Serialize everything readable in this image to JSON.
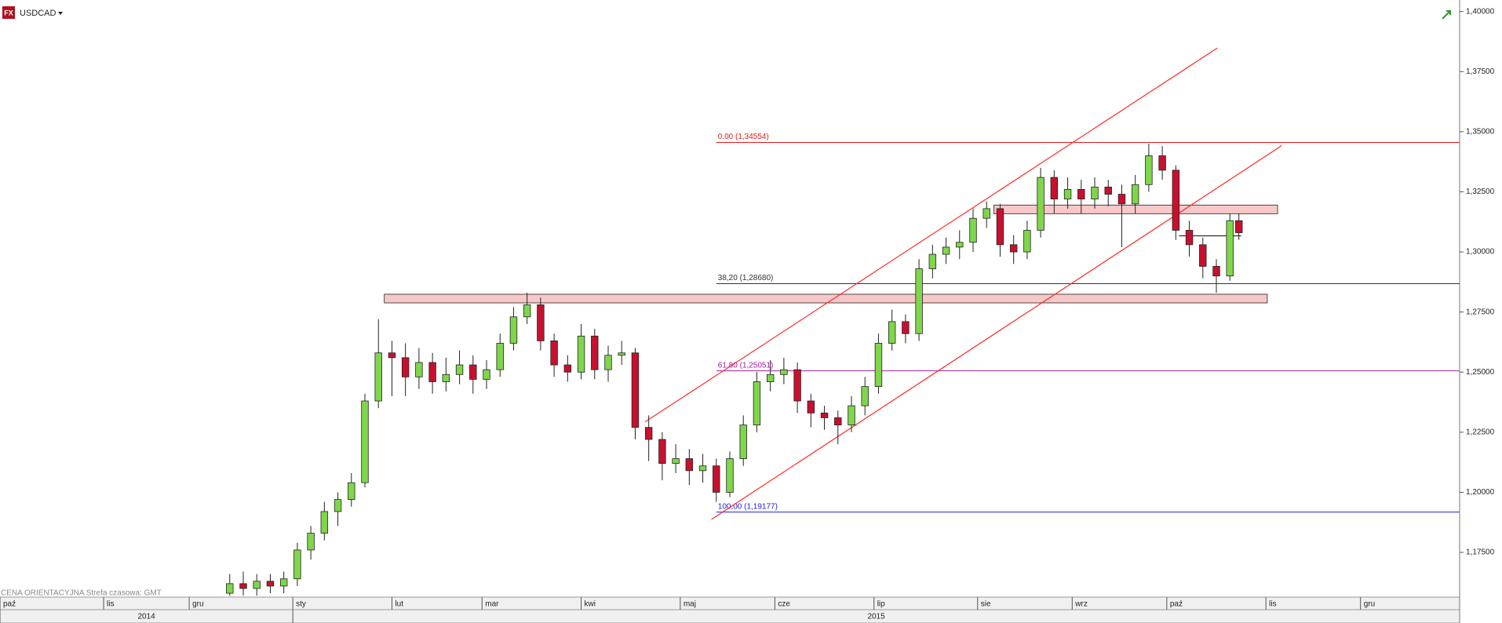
{
  "chart_data": {
    "type": "candlestick",
    "title": "USDCAD",
    "logo": "FX",
    "footnote": "CENA ORIENTACYJNA    Strefa czasowa: GMT",
    "x": [
      51,
      54,
      57,
      60,
      63,
      66,
      69,
      72,
      75,
      78,
      81,
      84,
      87,
      90,
      93,
      96,
      99,
      102,
      105,
      108,
      111,
      114,
      117,
      120,
      123,
      126,
      129,
      132,
      135,
      138,
      141,
      144,
      147,
      150,
      153,
      156,
      159,
      162,
      165,
      168,
      171,
      174,
      177,
      180,
      183,
      186,
      189,
      192,
      195,
      198,
      201,
      204,
      207,
      210,
      213,
      216,
      219,
      222,
      225,
      228,
      231,
      234,
      237,
      240,
      243,
      246,
      249,
      252,
      255,
      258,
      261,
      264,
      267,
      270,
      273,
      275
    ],
    "open": [
      1.158,
      1.162,
      1.16,
      1.163,
      1.161,
      1.164,
      1.176,
      1.183,
      1.192,
      1.197,
      1.204,
      1.238,
      1.258,
      1.256,
      1.248,
      1.254,
      1.246,
      1.249,
      1.253,
      1.247,
      1.251,
      1.262,
      1.273,
      1.278,
      1.263,
      1.253,
      1.25,
      1.265,
      1.251,
      1.257,
      1.258,
      1.227,
      1.222,
      1.212,
      1.214,
      1.209,
      1.211,
      1.2,
      1.214,
      1.228,
      1.246,
      1.249,
      1.251,
      1.238,
      1.233,
      1.231,
      1.228,
      1.236,
      1.244,
      1.262,
      1.271,
      1.266,
      1.293,
      1.299,
      1.302,
      1.304,
      1.314,
      1.318,
      1.303,
      1.3,
      1.309,
      1.331,
      1.322,
      1.326,
      1.322,
      1.327,
      1.324,
      1.32,
      1.328,
      1.34,
      1.334,
      1.309,
      1.303,
      1.294,
      1.29,
      1.313
    ],
    "high": [
      1.166,
      1.167,
      1.166,
      1.166,
      1.167,
      1.179,
      1.186,
      1.196,
      1.2,
      1.208,
      1.241,
      1.272,
      1.263,
      1.262,
      1.26,
      1.258,
      1.256,
      1.259,
      1.257,
      1.255,
      1.266,
      1.277,
      1.283,
      1.281,
      1.266,
      1.257,
      1.27,
      1.268,
      1.261,
      1.263,
      1.26,
      1.232,
      1.225,
      1.22,
      1.218,
      1.216,
      1.214,
      1.217,
      1.232,
      1.25,
      1.255,
      1.256,
      1.254,
      1.241,
      1.236,
      1.234,
      1.24,
      1.248,
      1.266,
      1.276,
      1.274,
      1.297,
      1.303,
      1.306,
      1.309,
      1.318,
      1.321,
      1.32,
      1.307,
      1.313,
      1.335,
      1.334,
      1.331,
      1.33,
      1.331,
      1.33,
      1.328,
      1.332,
      1.345,
      1.344,
      1.336,
      1.313,
      1.306,
      1.297,
      1.316,
      1.316
    ],
    "low": [
      1.157,
      1.157,
      1.157,
      1.158,
      1.158,
      1.161,
      1.172,
      1.18,
      1.186,
      1.194,
      1.202,
      1.235,
      1.24,
      1.24,
      1.243,
      1.241,
      1.242,
      1.245,
      1.241,
      1.243,
      1.248,
      1.259,
      1.27,
      1.259,
      1.248,
      1.246,
      1.247,
      1.247,
      1.246,
      1.253,
      1.222,
      1.213,
      1.205,
      1.208,
      1.203,
      1.204,
      1.196,
      1.198,
      1.211,
      1.225,
      1.242,
      1.245,
      1.233,
      1.227,
      1.226,
      1.22,
      1.225,
      1.232,
      1.241,
      1.259,
      1.262,
      1.263,
      1.289,
      1.295,
      1.297,
      1.3,
      1.31,
      1.298,
      1.295,
      1.297,
      1.306,
      1.316,
      1.318,
      1.316,
      1.318,
      1.319,
      1.302,
      1.316,
      1.325,
      1.33,
      1.305,
      1.298,
      1.289,
      1.283,
      1.288,
      1.305
    ],
    "close": [
      1.162,
      1.16,
      1.163,
      1.161,
      1.164,
      1.176,
      1.183,
      1.192,
      1.197,
      1.204,
      1.238,
      1.258,
      1.256,
      1.248,
      1.254,
      1.246,
      1.249,
      1.253,
      1.247,
      1.251,
      1.262,
      1.273,
      1.278,
      1.263,
      1.253,
      1.25,
      1.265,
      1.251,
      1.257,
      1.258,
      1.227,
      1.222,
      1.212,
      1.214,
      1.209,
      1.211,
      1.2,
      1.214,
      1.228,
      1.246,
      1.249,
      1.251,
      1.238,
      1.233,
      1.231,
      1.228,
      1.236,
      1.244,
      1.262,
      1.271,
      1.266,
      1.293,
      1.299,
      1.302,
      1.304,
      1.314,
      1.318,
      1.303,
      1.3,
      1.309,
      1.331,
      1.322,
      1.326,
      1.322,
      1.327,
      1.324,
      1.32,
      1.328,
      1.34,
      1.334,
      1.309,
      1.303,
      1.294,
      1.29,
      1.313,
      1.308
    ],
    "up_color": "#7fd64a",
    "down_color": "#c8102e",
    "xlim": [
      0,
      324
    ],
    "ylim": [
      1.1564,
      1.4048
    ],
    "xticks": [
      {
        "value": 0,
        "label": "paź"
      },
      {
        "value": 23,
        "label": "lis"
      },
      {
        "value": 42,
        "label": "gru"
      },
      {
        "value": 65,
        "label": "sty"
      },
      {
        "value": 87,
        "label": "lut"
      },
      {
        "value": 107,
        "label": "mar"
      },
      {
        "value": 129,
        "label": "kwi"
      },
      {
        "value": 151,
        "label": "maj"
      },
      {
        "value": 172,
        "label": "cze"
      },
      {
        "value": 194,
        "label": "lip"
      },
      {
        "value": 217,
        "label": "sie"
      },
      {
        "value": 238,
        "label": "wrz"
      },
      {
        "value": 259,
        "label": "paź"
      },
      {
        "value": 281,
        "label": "lis"
      },
      {
        "value": 302,
        "label": "gru"
      }
    ],
    "year_ticks": [
      {
        "value": 0,
        "label": "2014"
      },
      {
        "value": 65,
        "label": "2015"
      }
    ],
    "yticks": [
      {
        "value": 1.175,
        "label": "1,17500"
      },
      {
        "value": 1.2,
        "label": "1,20000"
      },
      {
        "value": 1.225,
        "label": "1,22500"
      },
      {
        "value": 1.25,
        "label": "1,25000"
      },
      {
        "value": 1.275,
        "label": "1,27500"
      },
      {
        "value": 1.3,
        "label": "1,30000"
      },
      {
        "value": 1.325,
        "label": "1,32500"
      },
      {
        "value": 1.35,
        "label": "1,35000"
      },
      {
        "value": 1.375,
        "label": "1,37500"
      },
      {
        "value": 1.4,
        "label": "1,40000"
      }
    ],
    "fib_levels": [
      {
        "label": "0,00 (1,34554)",
        "value": 1.34554,
        "x": 159,
        "color": "#e31a1c"
      },
      {
        "label": "38,20 (1,28680)",
        "value": 1.2868,
        "x": 159,
        "color": "#333333"
      },
      {
        "label": "61,80 (1,25051)",
        "value": 1.25051,
        "x": 159,
        "color": "#a020a0"
      },
      {
        "label": "100,00 (1,19177)",
        "value": 1.19177,
        "x": 159,
        "color": "#2020e0"
      }
    ],
    "trend_lines": [
      {
        "color": "#ff2a2a",
        "x": [
          143.2,
          270.2
        ],
        "y": [
          1.2293,
          1.3848
        ]
      },
      {
        "color": "#ff2a2a",
        "x": [
          157.9,
          284.5
        ],
        "y": [
          1.1887,
          1.3442
        ]
      },
      {
        "color": "#222222",
        "x": [
          261.7,
          275.5
        ],
        "y": [
          1.3067,
          1.3067
        ]
      }
    ],
    "zones": [
      {
        "color": "#f8c8c8",
        "x": [
          85.3,
          281.3
        ],
        "y": [
          1.2788,
          1.2824
        ]
      },
      {
        "color": "#f8c8c8",
        "x": [
          220.6,
          283.6
        ],
        "y": [
          1.3159,
          1.3195
        ]
      }
    ]
  }
}
